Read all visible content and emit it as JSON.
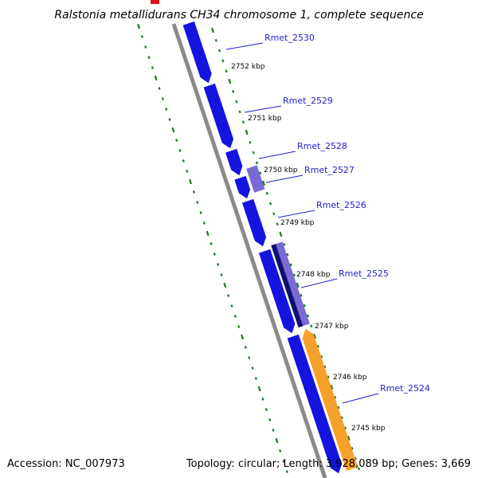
{
  "title": "Ralstonia metallidurans CH34 chromosome 1, complete sequence",
  "footer": {
    "accession": "Accession: NC_007973",
    "summary": "Topology: circular; Length: 3,928,089 bp; Genes: 3,669"
  },
  "colors": {
    "backbone": "#8a8a8a",
    "tick": "#1a7a1a",
    "gene_blue": "#1414e0",
    "gene_light": "#7a6ad6",
    "gene_dark": "#101070",
    "gene_orange": "#f7a02a",
    "gene_red": "#e01010",
    "label": "#1f1fd0"
  },
  "kbp_markers": [
    "2752 kbp",
    "2751 kbp",
    "2750 kbp",
    "2749 kbp",
    "2748 kbp",
    "2747 kbp",
    "2746 kbp",
    "2745 kbp"
  ],
  "gene_labels": [
    "Rmet_2530",
    "Rmet_2529",
    "Rmet_2528",
    "Rmet_2527",
    "Rmet_2526",
    "Rmet_2525",
    "Rmet_2524"
  ]
}
